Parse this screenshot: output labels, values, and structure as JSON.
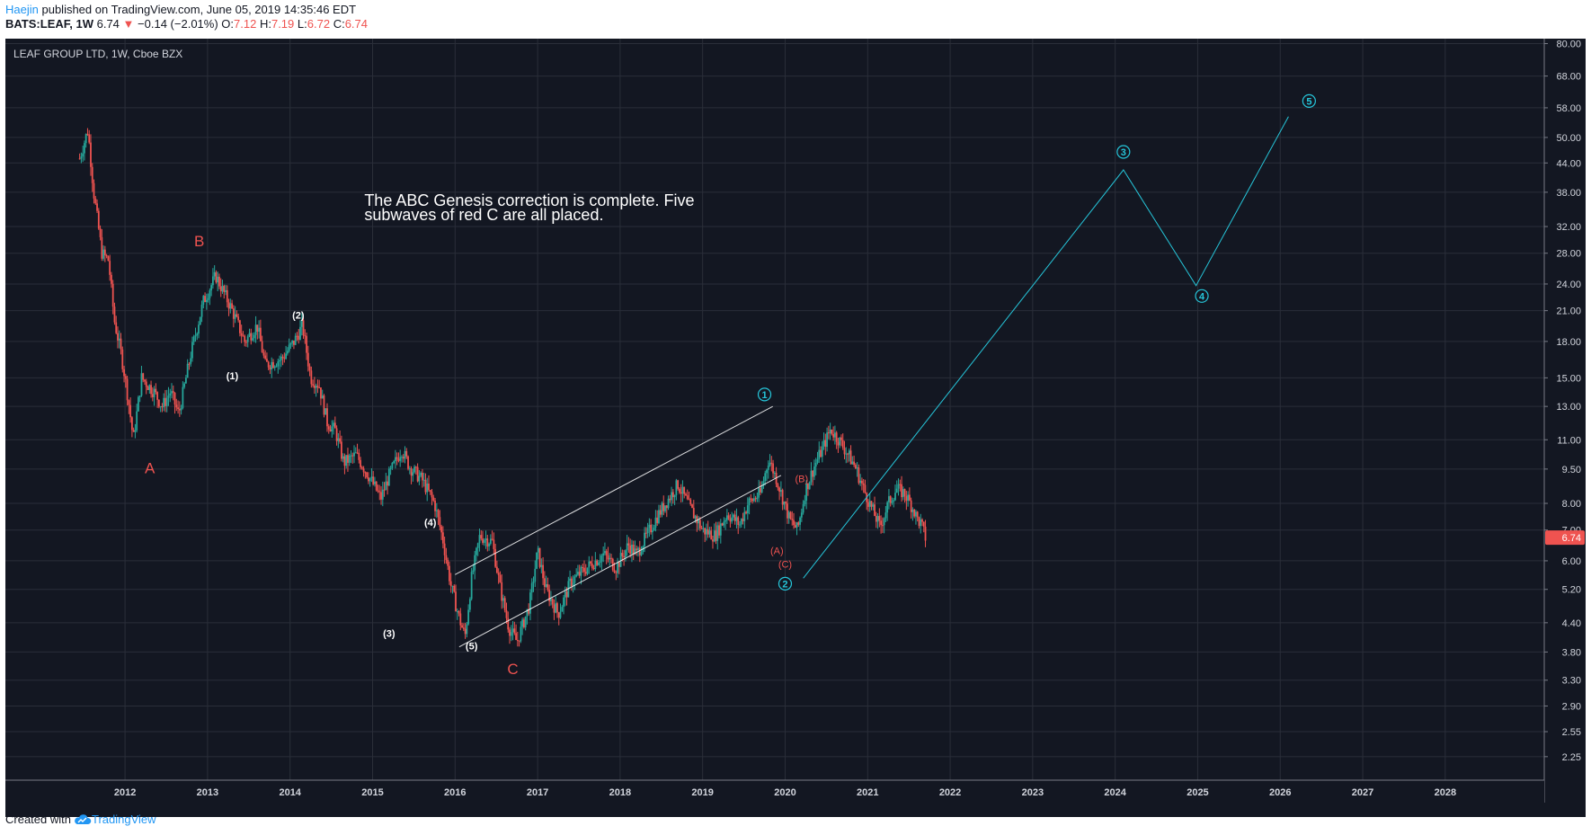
{
  "header": {
    "author": "Haejin",
    "published_text": "published on TradingView.com, June 05, 2019 14:35:46 EDT",
    "symbol": "BATS:LEAF, 1W",
    "last": "6.74",
    "change_arrow": "▼",
    "change": "−0.14 (−2.01%)",
    "o_label": "O:",
    "o_value": "7.12",
    "h_label": "H:",
    "h_value": "7.19",
    "l_label": "L:",
    "l_value": "6.72",
    "c_label": "C:",
    "c_value": "6.74"
  },
  "footer": {
    "created_with": "Created with",
    "brand": "TradingView"
  },
  "colors": {
    "background": "#131722",
    "grid": "#2a2e39",
    "up": "#26a69a",
    "down": "#ef5350",
    "projection": "#26c6da",
    "label_red": "#ef5350",
    "text": "#d1d4dc",
    "channel": "#ffffff"
  },
  "chart_data": {
    "type": "candlestick",
    "title": "LEAF GROUP LTD, 1W, Cboe BZX",
    "scale": "log",
    "ylim": [
      2.0,
      82.0
    ],
    "xlim": [
      2010.55,
      2029.2
    ],
    "price_ticks": [
      "80.00",
      "68.00",
      "58.00",
      "50.00",
      "44.00",
      "38.00",
      "32.00",
      "28.00",
      "24.00",
      "21.00",
      "18.00",
      "15.00",
      "13.00",
      "11.00",
      "9.50",
      "8.00",
      "7.00",
      "6.00",
      "5.20",
      "4.40",
      "3.80",
      "3.30",
      "2.90",
      "2.55",
      "2.25"
    ],
    "year_ticks": [
      "2012",
      "2013",
      "2014",
      "2015",
      "2016",
      "2017",
      "2018",
      "2019",
      "2020",
      "2021",
      "2022",
      "2023",
      "2024",
      "2025",
      "2026",
      "2027",
      "2028"
    ],
    "last_price_label": "6.74",
    "grid": true,
    "price_path": [
      [
        2011.45,
        45
      ],
      [
        2011.55,
        52
      ],
      [
        2011.62,
        38
      ],
      [
        2011.72,
        28
      ],
      [
        2011.8,
        27
      ],
      [
        2011.87,
        20
      ],
      [
        2011.95,
        17
      ],
      [
        2012.0,
        15
      ],
      [
        2012.05,
        13
      ],
      [
        2012.1,
        11
      ],
      [
        2012.2,
        15
      ],
      [
        2012.35,
        14
      ],
      [
        2012.45,
        13
      ],
      [
        2012.55,
        14
      ],
      [
        2012.65,
        12.5
      ],
      [
        2012.8,
        17
      ],
      [
        2012.95,
        22
      ],
      [
        2013.1,
        25
      ],
      [
        2013.3,
        21
      ],
      [
        2013.45,
        18
      ],
      [
        2013.6,
        19.5
      ],
      [
        2013.7,
        16
      ],
      [
        2013.9,
        16.5
      ],
      [
        2014.05,
        18
      ],
      [
        2014.15,
        19.5
      ],
      [
        2014.25,
        15
      ],
      [
        2014.35,
        14.5
      ],
      [
        2014.45,
        12
      ],
      [
        2014.55,
        11.5
      ],
      [
        2014.65,
        9.8
      ],
      [
        2014.8,
        10.2
      ],
      [
        2014.95,
        9.2
      ],
      [
        2015.1,
        8.2
      ],
      [
        2015.2,
        9.2
      ],
      [
        2015.35,
        10.5
      ],
      [
        2015.45,
        9.6
      ],
      [
        2015.6,
        9.0
      ],
      [
        2015.75,
        8.0
      ],
      [
        2015.85,
        6.7
      ],
      [
        2015.95,
        5.3
      ],
      [
        2016.05,
        4.5
      ],
      [
        2016.12,
        4.1
      ],
      [
        2016.2,
        5.5
      ],
      [
        2016.3,
        6.8
      ],
      [
        2016.45,
        6.6
      ],
      [
        2016.55,
        5.2
      ],
      [
        2016.65,
        4.3
      ],
      [
        2016.75,
        4.0
      ],
      [
        2016.9,
        4.8
      ],
      [
        2017.0,
        6.3
      ],
      [
        2017.1,
        5.2
      ],
      [
        2017.25,
        4.6
      ],
      [
        2017.4,
        5.4
      ],
      [
        2017.6,
        5.8
      ],
      [
        2017.8,
        6.2
      ],
      [
        2017.95,
        5.8
      ],
      [
        2018.1,
        6.5
      ],
      [
        2018.2,
        6.2
      ],
      [
        2018.32,
        6.8
      ],
      [
        2018.45,
        7.5
      ],
      [
        2018.55,
        8.0
      ],
      [
        2018.7,
        8.8
      ],
      [
        2018.85,
        7.8
      ],
      [
        2019.0,
        7.0
      ],
      [
        2019.15,
        6.8
      ],
      [
        2019.3,
        7.6
      ],
      [
        2019.45,
        7.2
      ],
      [
        2019.55,
        8.0
      ],
      [
        2019.7,
        8.4
      ],
      [
        2019.8,
        10.0
      ],
      [
        2019.9,
        9.0
      ],
      [
        2020.05,
        7.4
      ],
      [
        2020.15,
        7.0
      ],
      [
        2020.25,
        8.6
      ],
      [
        2020.35,
        9.6
      ],
      [
        2020.45,
        10.5
      ],
      [
        2020.55,
        11.6
      ],
      [
        2020.65,
        11.0
      ],
      [
        2020.75,
        10.3
      ],
      [
        2020.85,
        9.6
      ],
      [
        2020.95,
        8.6
      ],
      [
        2021.05,
        7.8
      ],
      [
        2021.15,
        7.1
      ],
      [
        2021.25,
        8.0
      ],
      [
        2021.35,
        8.6
      ],
      [
        2021.45,
        8.4
      ],
      [
        2021.55,
        7.8
      ],
      [
        2021.6,
        7.4
      ],
      [
        2021.65,
        7.2
      ],
      [
        2021.7,
        6.74
      ]
    ],
    "channel_lines": [
      [
        [
          2016.0,
          5.6
        ],
        [
          2019.85,
          13.0
        ]
      ],
      [
        [
          2016.05,
          3.9
        ],
        [
          2019.95,
          9.2
        ]
      ]
    ],
    "projection": [
      [
        2020.22,
        5.5
      ],
      [
        2024.1,
        42.5
      ],
      [
        2024.98,
        23.8
      ],
      [
        2026.1,
        55.5
      ]
    ],
    "annotations": [
      {
        "text": "The ABC Genesis correction is complete. Five",
        "x": 2014.9,
        "y": 35.5,
        "style": "note"
      },
      {
        "text": "subwaves of red C are all placed.",
        "x": 2014.9,
        "y": 33.0,
        "style": "note"
      },
      {
        "text": "A",
        "x": 2012.3,
        "y": 9.3,
        "style": "red-big"
      },
      {
        "text": "B",
        "x": 2012.9,
        "y": 29.0,
        "style": "red-big"
      },
      {
        "text": "C",
        "x": 2016.7,
        "y": 3.4,
        "style": "red-big"
      },
      {
        "text": "(1)",
        "x": 2013.3,
        "y": 14.9,
        "style": "white"
      },
      {
        "text": "(2)",
        "x": 2014.1,
        "y": 20.2,
        "style": "white"
      },
      {
        "text": "(3)",
        "x": 2015.2,
        "y": 4.1,
        "style": "white"
      },
      {
        "text": "(4)",
        "x": 2015.7,
        "y": 7.15,
        "style": "white"
      },
      {
        "text": "(5)",
        "x": 2016.2,
        "y": 3.85,
        "style": "white"
      },
      {
        "text": "(A)",
        "x": 2019.9,
        "y": 6.2,
        "style": "red-small"
      },
      {
        "text": "(B)",
        "x": 2020.2,
        "y": 8.9,
        "style": "red-small"
      },
      {
        "text": "(C)",
        "x": 2020.0,
        "y": 5.8,
        "style": "red-small"
      },
      {
        "text": "1",
        "x": 2019.75,
        "y": 13.8,
        "style": "circle"
      },
      {
        "text": "2",
        "x": 2020.0,
        "y": 5.35,
        "style": "circle"
      },
      {
        "text": "3",
        "x": 2024.1,
        "y": 46.5,
        "style": "circle"
      },
      {
        "text": "4",
        "x": 2025.05,
        "y": 22.6,
        "style": "circle"
      },
      {
        "text": "5",
        "x": 2026.35,
        "y": 60.0,
        "style": "circle"
      }
    ]
  }
}
